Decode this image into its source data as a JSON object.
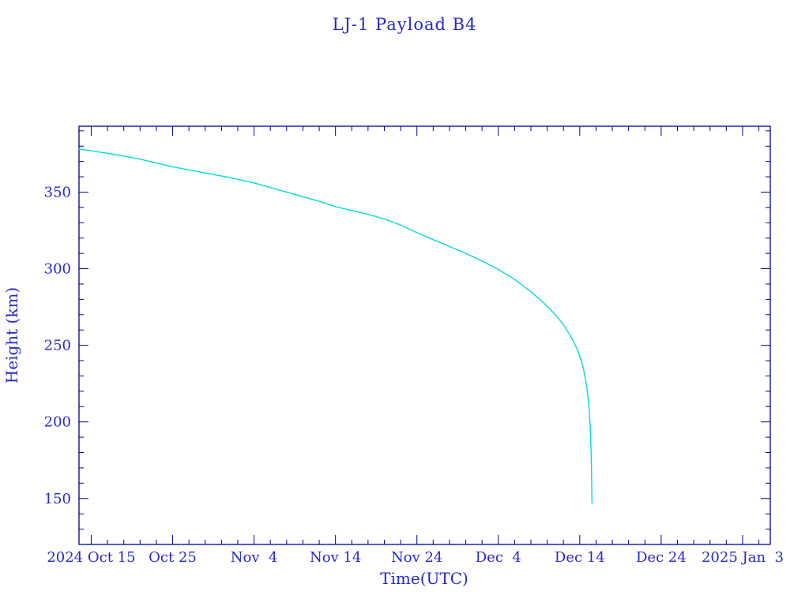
{
  "chart_data": {
    "type": "line",
    "title": "LJ-1 Payload B4",
    "xlabel": "Time(UTC)",
    "ylabel": "Height (km)",
    "x_unit": "days since 2024 Oct 15",
    "xlim": [
      -1.5,
      83.4
    ],
    "ylim": [
      120,
      393
    ],
    "x_minor_step": 2,
    "y_minor_step": 10,
    "x_ticks": [
      {
        "value": 0,
        "label": "2024 Oct 15"
      },
      {
        "value": 10,
        "label": "Oct 25"
      },
      {
        "value": 20,
        "label": "Nov  4"
      },
      {
        "value": 30,
        "label": "Nov 14"
      },
      {
        "value": 40,
        "label": "Nov 24"
      },
      {
        "value": 50,
        "label": "Dec  4"
      },
      {
        "value": 60,
        "label": "Dec 14"
      },
      {
        "value": 70,
        "label": "Dec 24"
      },
      {
        "value": 80,
        "label": "2025 Jan  3"
      }
    ],
    "y_ticks": [
      {
        "value": 150,
        "label": "150"
      },
      {
        "value": 200,
        "label": "200"
      },
      {
        "value": 250,
        "label": "250"
      },
      {
        "value": 300,
        "label": "300"
      },
      {
        "value": 350,
        "label": "350"
      }
    ],
    "colors": {
      "line": "#00dcdc",
      "axis": "#000099",
      "text": "#2828cc",
      "background": "#ffffff"
    },
    "series": [
      {
        "name": "LJ-1 Payload B4 height",
        "x": [
          -1.5,
          0,
          3,
          6,
          10,
          14,
          17,
          20,
          23,
          26,
          28,
          30,
          32,
          34,
          36,
          38,
          40,
          42,
          44,
          46,
          48,
          50,
          52,
          54,
          55.5,
          57,
          58,
          59,
          59.8,
          60.4,
          60.8,
          61.1,
          61.3,
          61.42,
          61.5
        ],
        "y": [
          378,
          377,
          374.5,
          371.5,
          366.5,
          362.5,
          359.5,
          356,
          351.5,
          347,
          344,
          340.5,
          338,
          335.5,
          332.5,
          328.5,
          323.5,
          319,
          314.5,
          310,
          305,
          299.5,
          293,
          285,
          278,
          270,
          263.5,
          255,
          246,
          236,
          225,
          212,
          196,
          175,
          147
        ]
      }
    ]
  }
}
